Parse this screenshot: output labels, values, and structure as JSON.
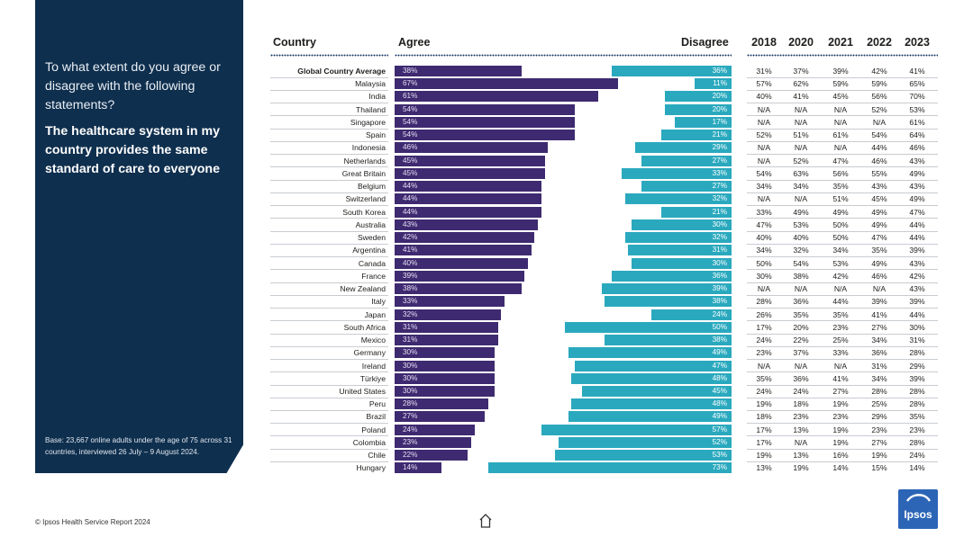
{
  "panel": {
    "question": "To what extent do you agree or disagree with the following statements?",
    "statement": "The healthcare system in my country provides the same standard of care to everyone",
    "base": "Base: 23,667 online adults under the age of 75 across 31 countries, interviewed 26 July – 9 August 2024."
  },
  "headers": {
    "country": "Country",
    "agree": "Agree",
    "disagree": "Disagree",
    "years": [
      "2018",
      "2020",
      "2021",
      "2022",
      "2023"
    ]
  },
  "colors": {
    "agree": "#3e2a70",
    "disagree": "#2aa9be",
    "panel": "#0f2f4e"
  },
  "footer": {
    "source": "© Ipsos Health Service Report 2024",
    "logo_text": "Ipsos"
  },
  "chart_data": {
    "type": "bar",
    "title": "The healthcare system in my country provides the same standard of care to everyone",
    "categories": [
      "Global Country Average",
      "Malaysia",
      "India",
      "Thailand",
      "Singapore",
      "Spain",
      "Indonesia",
      "Netherlands",
      "Great Britain",
      "Belgium",
      "Switzerland",
      "South Korea",
      "Australia",
      "Sweden",
      "Argentina",
      "Canada",
      "France",
      "New Zealand",
      "Italy",
      "Japan",
      "South Africa",
      "Mexico",
      "Germany",
      "Ireland",
      "Türkiye",
      "United States",
      "Peru",
      "Brazil",
      "Poland",
      "Colombia",
      "Chile",
      "Hungary"
    ],
    "series": [
      {
        "name": "Agree",
        "values": [
          38,
          67,
          61,
          54,
          54,
          54,
          46,
          45,
          45,
          44,
          44,
          44,
          43,
          42,
          41,
          40,
          39,
          38,
          33,
          32,
          31,
          31,
          30,
          30,
          30,
          30,
          28,
          27,
          24,
          23,
          22,
          14
        ]
      },
      {
        "name": "Disagree",
        "values": [
          36,
          11,
          20,
          20,
          17,
          21,
          29,
          27,
          33,
          27,
          32,
          21,
          30,
          32,
          31,
          30,
          36,
          39,
          38,
          24,
          50,
          38,
          49,
          47,
          48,
          45,
          48,
          49,
          57,
          52,
          53,
          73
        ]
      }
    ],
    "labels": {
      "agree": [
        "38%",
        "67%",
        "61%",
        "54%",
        "54%",
        "54%",
        "46%",
        "45%",
        "45%",
        "44%",
        "44%",
        "44%",
        "43%",
        "42%",
        "41%",
        "40%",
        "39%",
        "38%",
        "33%",
        "32%",
        "31%",
        "31%",
        "30%",
        "30%",
        "30%",
        "30%",
        "28%",
        "27%",
        "24%",
        "23%",
        "22%",
        "14%"
      ],
      "disagree": [
        "36%",
        "11%",
        "20%",
        "20%",
        "17%",
        "21%",
        "29%",
        "27%",
        "33%",
        "27%",
        "32%",
        "21%",
        "30%",
        "32%",
        "31%",
        "30%",
        "36%",
        "39%",
        "38%",
        "24%",
        "50%",
        "38%",
        "49%",
        "47%",
        "48%",
        "45%",
        "48%",
        "49%",
        "57%",
        "52%",
        "53%",
        "73%"
      ]
    },
    "history": [
      [
        "31%",
        "37%",
        "39%",
        "42%",
        "41%"
      ],
      [
        "57%",
        "62%",
        "59%",
        "59%",
        "65%"
      ],
      [
        "40%",
        "41%",
        "45%",
        "56%",
        "70%"
      ],
      [
        "N/A",
        "N/A",
        "N/A",
        "52%",
        "53%"
      ],
      [
        "N/A",
        "N/A",
        "N/A",
        "N/A",
        "61%"
      ],
      [
        "52%",
        "51%",
        "61%",
        "54%",
        "64%"
      ],
      [
        "N/A",
        "N/A",
        "N/A",
        "44%",
        "46%"
      ],
      [
        "N/A",
        "52%",
        "47%",
        "46%",
        "43%"
      ],
      [
        "54%",
        "63%",
        "56%",
        "55%",
        "49%"
      ],
      [
        "34%",
        "34%",
        "35%",
        "43%",
        "43%"
      ],
      [
        "N/A",
        "N/A",
        "51%",
        "45%",
        "49%"
      ],
      [
        "33%",
        "49%",
        "49%",
        "49%",
        "47%"
      ],
      [
        "47%",
        "53%",
        "50%",
        "49%",
        "44%"
      ],
      [
        "40%",
        "40%",
        "50%",
        "47%",
        "44%"
      ],
      [
        "34%",
        "32%",
        "34%",
        "35%",
        "39%"
      ],
      [
        "50%",
        "54%",
        "53%",
        "49%",
        "43%"
      ],
      [
        "30%",
        "38%",
        "42%",
        "46%",
        "42%"
      ],
      [
        "N/A",
        "N/A",
        "N/A",
        "N/A",
        "43%"
      ],
      [
        "28%",
        "36%",
        "44%",
        "39%",
        "39%"
      ],
      [
        "26%",
        "35%",
        "35%",
        "41%",
        "44%"
      ],
      [
        "17%",
        "20%",
        "23%",
        "27%",
        "30%"
      ],
      [
        "24%",
        "22%",
        "25%",
        "34%",
        "31%"
      ],
      [
        "23%",
        "37%",
        "33%",
        "36%",
        "28%"
      ],
      [
        "N/A",
        "N/A",
        "N/A",
        "31%",
        "29%"
      ],
      [
        "35%",
        "36%",
        "41%",
        "34%",
        "39%"
      ],
      [
        "24%",
        "24%",
        "27%",
        "28%",
        "28%"
      ],
      [
        "19%",
        "18%",
        "19%",
        "25%",
        "28%"
      ],
      [
        "18%",
        "23%",
        "23%",
        "29%",
        "35%"
      ],
      [
        "17%",
        "13%",
        "19%",
        "23%",
        "23%"
      ],
      [
        "17%",
        "N/A",
        "19%",
        "27%",
        "28%"
      ],
      [
        "19%",
        "13%",
        "16%",
        "19%",
        "24%"
      ],
      [
        "13%",
        "19%",
        "14%",
        "15%",
        "14%"
      ]
    ],
    "xlabel": "",
    "ylabel": "",
    "xlim": [
      0,
      100
    ]
  }
}
